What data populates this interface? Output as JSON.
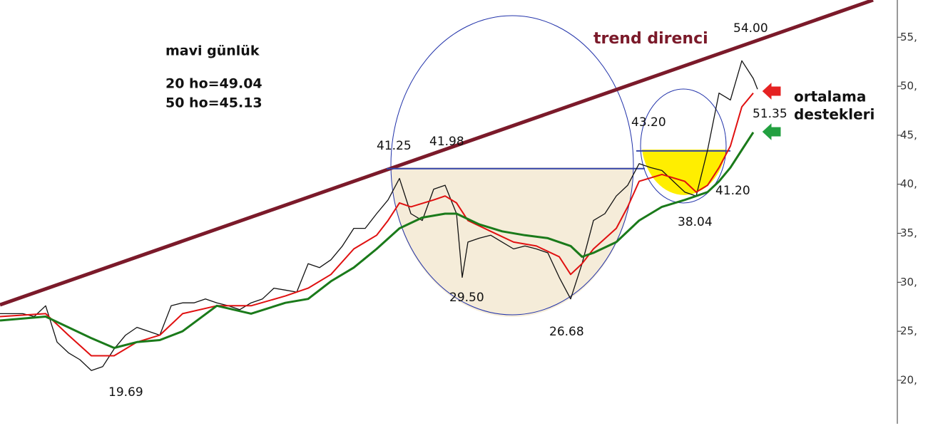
{
  "chart_data": {
    "type": "line",
    "xlim": [
      0,
      314.5
    ],
    "ylim": [
      13.6,
      58.8
    ],
    "yticks": [
      {
        "value": 20,
        "label": "20,"
      },
      {
        "value": 25,
        "label": "25,"
      },
      {
        "value": 30,
        "label": "30,"
      },
      {
        "value": 35,
        "label": "35,"
      },
      {
        "value": 40,
        "label": "40,"
      },
      {
        "value": 45,
        "label": "45,"
      },
      {
        "value": 50,
        "label": "50,"
      },
      {
        "value": 55,
        "label": "55,"
      }
    ],
    "grid": false,
    "series": [
      {
        "color": "#111111",
        "x": [
          0,
          4,
          8,
          12,
          16,
          20,
          24,
          28,
          32,
          36,
          40,
          44,
          48,
          52,
          56,
          60,
          64,
          68,
          72,
          76,
          80,
          84,
          88,
          92,
          96,
          100,
          104,
          108,
          112,
          116,
          120,
          124,
          128,
          132,
          136,
          140,
          144,
          148,
          152,
          156,
          160,
          162,
          164,
          168,
          172,
          176,
          180,
          184,
          188,
          192,
          196,
          200,
          204,
          208,
          212,
          216,
          220,
          224,
          228,
          232,
          236,
          240,
          244,
          248,
          252,
          256,
          260,
          264,
          265.5
        ],
        "values": [
          26.8,
          26.8,
          26.8,
          26.5,
          27.6,
          23.9,
          22.8,
          22.1,
          21.0,
          21.4,
          23.2,
          24.6,
          25.4,
          25.0,
          24.6,
          27.6,
          27.9,
          27.9,
          28.3,
          27.9,
          27.6,
          27.2,
          27.9,
          28.3,
          29.4,
          29.2,
          29.0,
          31.9,
          31.5,
          32.3,
          33.7,
          35.5,
          35.5,
          37.0,
          38.4,
          40.6,
          37.0,
          36.3,
          39.5,
          39.9,
          37.0,
          30.5,
          34.1,
          34.5,
          34.8,
          34.1,
          33.4,
          33.7,
          33.4,
          33.0,
          30.5,
          28.3,
          31.9,
          36.3,
          37.0,
          38.8,
          39.9,
          42.1,
          41.7,
          41.4,
          40.3,
          39.2,
          38.8,
          43.5,
          49.3,
          48.6,
          52.6,
          50.8,
          49.7
        ]
      },
      {
        "color": "#e01010",
        "x": [
          0,
          16,
          24,
          32,
          40,
          48,
          56,
          64,
          76,
          88,
          100,
          108,
          116,
          124,
          132,
          136,
          140,
          144,
          152,
          156,
          160,
          164,
          172,
          180,
          188,
          196,
          200,
          204,
          208,
          216,
          220,
          224,
          232,
          240,
          244,
          248,
          252,
          256,
          260,
          264
        ],
        "values": [
          26.5,
          26.8,
          24.6,
          22.5,
          22.5,
          23.9,
          24.6,
          26.8,
          27.6,
          27.6,
          28.6,
          29.4,
          30.8,
          33.4,
          34.8,
          36.3,
          38.1,
          37.7,
          38.4,
          38.8,
          38.1,
          36.3,
          35.2,
          34.1,
          33.7,
          32.6,
          30.8,
          31.9,
          33.4,
          35.5,
          37.7,
          40.3,
          41.0,
          40.3,
          39.2,
          39.9,
          41.7,
          43.9,
          47.9,
          49.3
        ]
      },
      {
        "color": "#1a7a1a",
        "x": [
          0,
          16,
          24,
          32,
          40,
          48,
          56,
          64,
          76,
          88,
          100,
          108,
          116,
          124,
          132,
          140,
          148,
          156,
          160,
          168,
          176,
          184,
          192,
          200,
          204,
          208,
          216,
          224,
          232,
          240,
          248,
          252,
          256,
          260,
          264
        ],
        "values": [
          26.1,
          26.5,
          25.4,
          24.3,
          23.3,
          23.9,
          24.1,
          25.0,
          27.6,
          26.8,
          27.9,
          28.3,
          30.1,
          31.5,
          33.4,
          35.5,
          36.6,
          37.0,
          37.0,
          35.9,
          35.2,
          34.8,
          34.5,
          33.7,
          32.6,
          33.0,
          34.1,
          36.3,
          37.7,
          38.4,
          39.2,
          40.3,
          41.7,
          43.5,
          45.3
        ]
      }
    ],
    "trend_line": {
      "color": "#7b1a2a",
      "x": [
        0,
        306
      ],
      "values": [
        27.7,
        58.8
      ]
    },
    "levels": [
      {
        "color": "#3344aa",
        "x": [
          135.5,
          226
        ],
        "value": 41.6
      },
      {
        "color": "#3344aa",
        "x": [
          223,
          256
        ],
        "value": 43.4
      }
    ],
    "annotations": [
      "mavi günlük",
      "20 ho=49.04",
      "50 ho=45.13",
      "trend direnci",
      "ortalama",
      "destekleri"
    ],
    "point_labels": [
      "54.00",
      "41.25",
      "41.98",
      "43.20",
      "29.50",
      "26.68",
      "19.69",
      "38.04",
      "41.20",
      "51.35"
    ]
  }
}
